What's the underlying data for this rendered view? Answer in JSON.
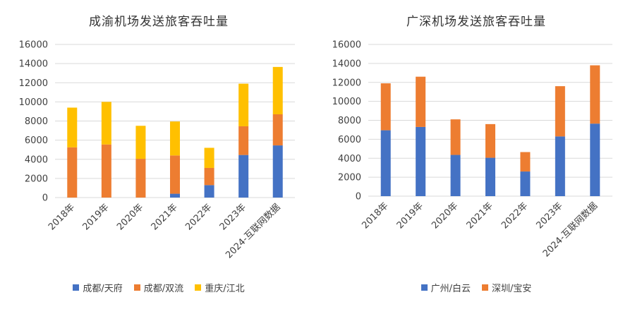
{
  "chart_data": [
    {
      "type": "bar",
      "stacked": true,
      "title": "成渝机场发送旅客吞吐量",
      "categories": [
        "2018年",
        "2019年",
        "2020年",
        "2021年",
        "2022年",
        "2023年",
        "2024-互联网数据"
      ],
      "ylim": [
        0,
        16000
      ],
      "yticks": [
        "0",
        "2000",
        "4000",
        "6000",
        "8000",
        "10000",
        "12000",
        "14000",
        "16000"
      ],
      "grid": true,
      "legend_position": "bottom",
      "series": [
        {
          "name": "成都/天府",
          "color": "#4472C4",
          "values": [
            0,
            0,
            0,
            400,
            1300,
            4450,
            5450
          ]
        },
        {
          "name": "成都/双流",
          "color": "#ED7D31",
          "values": [
            5250,
            5550,
            4050,
            4000,
            1800,
            3000,
            3250
          ]
        },
        {
          "name": "重庆/江北",
          "color": "#FFC000",
          "values": [
            4150,
            4450,
            3450,
            3550,
            2100,
            4450,
            4950
          ]
        }
      ]
    },
    {
      "type": "bar",
      "stacked": true,
      "title": "广深机场发送旅客吞吐量",
      "categories": [
        "2018年",
        "2019年",
        "2020年",
        "2021年",
        "2022年",
        "2023年",
        "2024-互联网数据"
      ],
      "ylim": [
        0,
        16000
      ],
      "yticks": [
        "0",
        "2000",
        "4000",
        "6000",
        "8000",
        "10000",
        "12000",
        "14000",
        "16000"
      ],
      "grid": true,
      "legend_position": "bottom",
      "series": [
        {
          "name": "广州/白云",
          "color": "#4472C4",
          "values": [
            6950,
            7300,
            4350,
            4050,
            2600,
            6300,
            7650
          ]
        },
        {
          "name": "深圳/宝安",
          "color": "#ED7D31",
          "values": [
            4950,
            5300,
            3750,
            3550,
            2050,
            5300,
            6150
          ]
        }
      ]
    }
  ]
}
